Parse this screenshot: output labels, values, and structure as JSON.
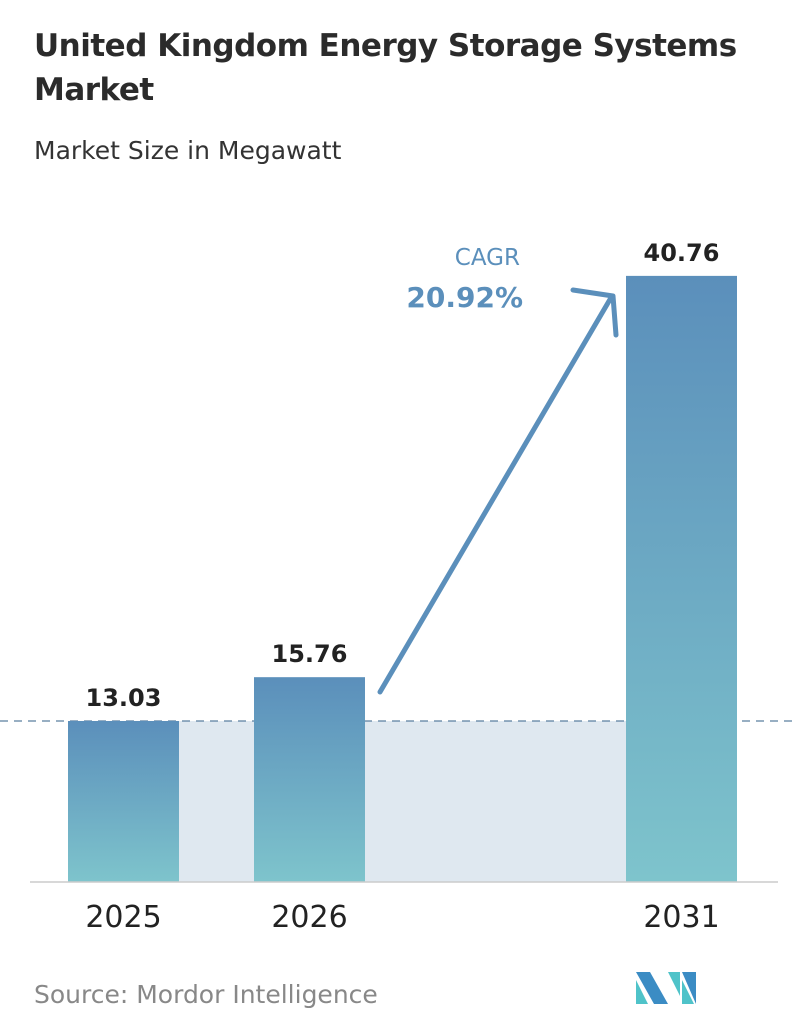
{
  "title": "United Kingdom Energy Storage Systems Market",
  "subtitle": "Market Size in Megawatt",
  "source": "Source:  Mordor Intelligence",
  "cagr": {
    "label": "CAGR",
    "value": "20.92%"
  },
  "colors": {
    "bar_top": "#5b8fbb",
    "bar_bottom": "#7ec4cc",
    "accent": "#5b8fbb",
    "shade": "#dfe8f0"
  },
  "chart_data": {
    "type": "bar",
    "categories": [
      "2025",
      "2026",
      "2031"
    ],
    "values": [
      13.03,
      15.76,
      40.76
    ],
    "data_labels": [
      "13.03",
      "15.76",
      "40.76"
    ],
    "title": "United Kingdom Energy Storage Systems Market",
    "subtitle": "Market Size in Megawatt",
    "xlabel": "",
    "ylabel": "",
    "ylim": [
      3,
      41.5
    ],
    "grid": false,
    "annotations": [
      "CAGR",
      "20.92%"
    ]
  }
}
